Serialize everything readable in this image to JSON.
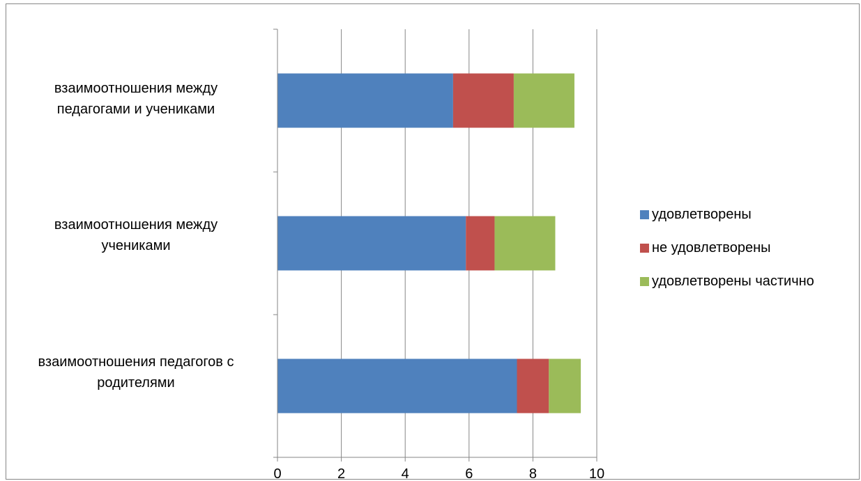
{
  "chart_data": {
    "type": "bar",
    "orientation": "horizontal",
    "stacked": true,
    "categories": [
      "взаимоотношения между педагогами и учениками",
      "взаимоотношения между учениками",
      "взаимоотношения педагогов с родителями"
    ],
    "category_lines": [
      [
        "взаимоотношения между",
        "педагогами и учениками"
      ],
      [
        "взаимоотношения между",
        "учениками"
      ],
      [
        "взаимоотношения педагогов с",
        "родителями"
      ]
    ],
    "series": [
      {
        "name": "удовлетворены",
        "color": "#4F81BD",
        "values": [
          5.5,
          5.9,
          7.5
        ]
      },
      {
        "name": "не удовлетворены",
        "color": "#C0504D",
        "values": [
          1.9,
          0.9,
          1.0
        ]
      },
      {
        "name": "удовлетворены частично",
        "color": "#9BBB59",
        "values": [
          1.9,
          1.9,
          1.0
        ]
      }
    ],
    "xlim": [
      0,
      10
    ],
    "xticks": [
      0,
      2,
      4,
      6,
      8,
      10
    ],
    "grid": true,
    "legend_position": "right",
    "title": "",
    "xlabel": "",
    "ylabel": ""
  }
}
